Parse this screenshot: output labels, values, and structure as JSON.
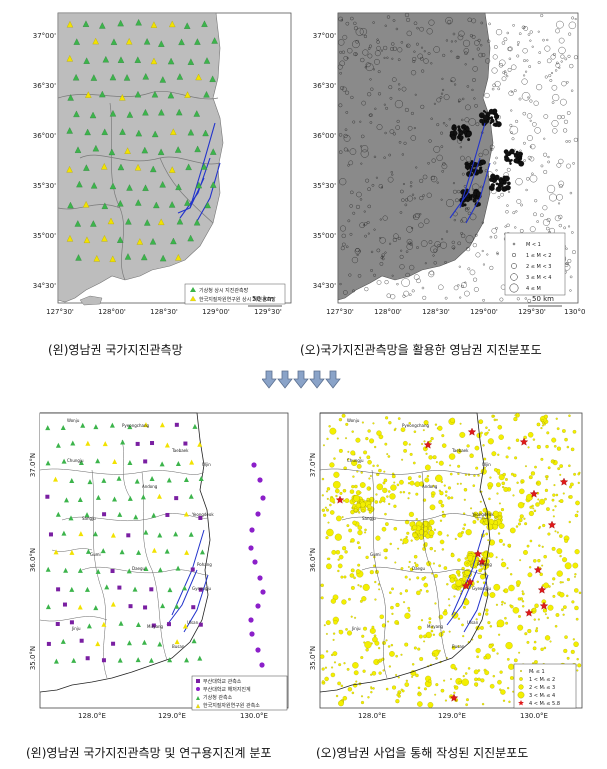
{
  "top_left": {
    "caption": "(왼)영남권 국가지진관측망",
    "lat_ticks": [
      "37°00'",
      "36°30'",
      "36°00'",
      "35°30'",
      "35°00'",
      "34°30'"
    ],
    "lon_ticks": [
      "127°30'",
      "128°00'",
      "128°30'",
      "129°00'",
      "129°30'"
    ],
    "legend": [
      "기상청 상시 지진관측망",
      "한국지질자원연구원 상시 지진관측망"
    ],
    "scale": "50 km",
    "colors": {
      "land": "#bdbdbd",
      "sea": "#ffffff",
      "kma": "#3cb44b",
      "kigam": "#f2e200",
      "fault": "#2233cc"
    }
  },
  "top_right": {
    "caption": "(오)국가지진관측망을 활용한 영남권 지진분포도",
    "lat_ticks": [
      "37°00'",
      "36°30'",
      "36°00'",
      "35°30'",
      "35°00'",
      "34°30'"
    ],
    "lon_ticks": [
      "127°30'",
      "128°00'",
      "128°30'",
      "129°00'",
      "129°30'",
      "130°00'"
    ],
    "legend": [
      "M < 1",
      "1 ≤ M < 2",
      "2 ≤ M < 3",
      "3 ≤ M < 4",
      "4 ≤ M"
    ],
    "scale": "50 km"
  },
  "bottom_left": {
    "caption": "(왼)영남권 국가지진관측망 및 연구용지진계 분포",
    "lat_ticks": [
      "37.0°N",
      "36.0°N",
      "35.0°N"
    ],
    "lon_ticks": [
      "128.0°E",
      "129.0°E",
      "130.0°E"
    ],
    "cities": [
      "Wonju",
      "Pyeongchang",
      "Taebaek",
      "Chungju",
      "Uljin",
      "Andong",
      "Yeongdeok",
      "Sangju",
      "Gumi",
      "Daegu",
      "Pohang",
      "Gyeongju",
      "Miryang",
      "Ulsan",
      "Busan",
      "Jinju"
    ],
    "legend": [
      "부산대학교 관측소",
      "부산대학교 해저지진계",
      "기상청 관측소",
      "한국지질자원연구원 관측소"
    ],
    "colors": {
      "pnu_station": "#7a1fa2",
      "obs": "#8b1fc9",
      "kma": "#3cb44b",
      "kigam": "#f2e200"
    }
  },
  "bottom_right": {
    "caption": "(오)영남권 사업을 통해 작성된 지진분포도",
    "lat_ticks": [
      "37.0°N",
      "36.0°N",
      "35.0°N"
    ],
    "lon_ticks": [
      "128.0°E",
      "129.0°E",
      "130.0°E"
    ],
    "cities": [
      "Wonju",
      "Pyeongchang",
      "Taebaek",
      "Chungju",
      "Uljin",
      "Andong",
      "Yeongdeok",
      "Sangju",
      "Gumi",
      "Daegu",
      "Pohang",
      "Gyeongju",
      "Miryang",
      "Ulsan",
      "Busan",
      "Jinju"
    ],
    "legend": [
      "Mₗ ≤ 1",
      "1 < Mₗ ≤ 2",
      "2 < Mₗ ≤ 3",
      "3 < Mₗ ≤ 4",
      "4 < Mₗ ≤ 5.8"
    ],
    "colors": {
      "quake": "#f3ef00",
      "star": "#e0191b"
    }
  }
}
